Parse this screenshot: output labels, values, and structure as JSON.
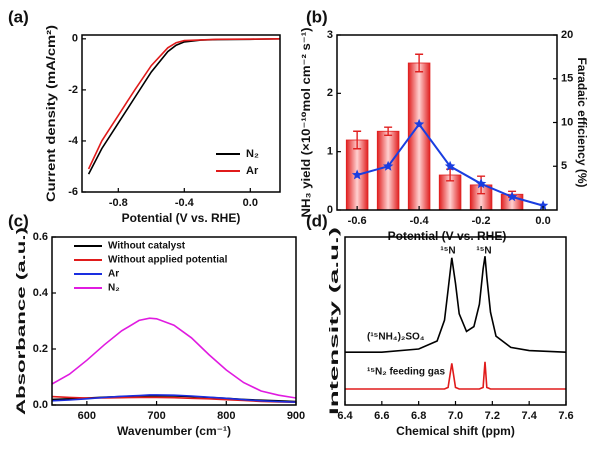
{
  "chart_data": [
    {
      "type": "line",
      "label": "(a)",
      "xlabel": "Potential (V vs. RHE)",
      "ylabel": "Current density (mA/cm²)",
      "xlim": [
        -1.02,
        0.18
      ],
      "xticks": [
        -0.8,
        -0.4,
        {
          "value": 0,
          "label": "0.0"
        }
      ],
      "ylim": [
        -6,
        0.15
      ],
      "yticks": [
        -6,
        -4,
        -2,
        0
      ],
      "legend": "lower right",
      "x": [
        -0.98,
        -0.9,
        -0.8,
        -0.7,
        -0.6,
        -0.5,
        -0.45,
        -0.4,
        -0.3,
        -0.2,
        0,
        0.18
      ],
      "series": [
        {
          "name": "N₂",
          "color": "#000000",
          "values": [
            -5.3,
            -4.3,
            -3.3,
            -2.3,
            -1.3,
            -0.5,
            -0.25,
            -0.12,
            -0.05,
            -0.03,
            -0.02,
            0
          ]
        },
        {
          "name": "Ar",
          "color": "#e01b1b",
          "values": [
            -5.1,
            -4.0,
            -3.0,
            -2.0,
            -1.05,
            -0.35,
            -0.15,
            -0.07,
            -0.04,
            -0.02,
            -0.01,
            0
          ]
        }
      ]
    },
    {
      "type": "bar",
      "label": "(b)",
      "xlabel": "Potential (V vs. RHE)",
      "ylabel": "NH₃ yield (×10⁻¹⁰mol cm⁻² s⁻¹)",
      "y2label": "Faradaic efficiency (%)",
      "xlim": [
        -0.665,
        0.045
      ],
      "xticks": [
        -0.6,
        -0.4,
        -0.2,
        {
          "value": 0,
          "label": "0.0"
        }
      ],
      "ylim": [
        0,
        3
      ],
      "yticks": [
        0,
        1,
        2,
        3
      ],
      "y2lim": [
        0,
        20
      ],
      "y2ticks": [
        5,
        10,
        15,
        20
      ],
      "x": [
        -0.6,
        -0.5,
        -0.4,
        -0.3,
        -0.2,
        -0.1,
        0
      ],
      "series": [
        {
          "color": "#e02020",
          "values": [
            1.2,
            1.35,
            2.52,
            0.6,
            0.43,
            0.27,
            null
          ],
          "errors": [
            0.15,
            0.07,
            0.15,
            0.1,
            0.15,
            0.05,
            null
          ]
        },
        {
          "color": "#1a3ee0",
          "axis": "y2",
          "values": [
            4,
            5,
            9.8,
            5,
            3,
            1.5,
            0.5
          ]
        }
      ]
    },
    {
      "type": "line",
      "label": "(c)",
      "xlabel": "Wavenumber (cm⁻¹)",
      "ylabel": "Absorbance (a.u.)",
      "xlim": [
        550,
        900
      ],
      "xticks": [
        600,
        700,
        800,
        900
      ],
      "ylim": [
        0,
        0.6
      ],
      "yticks": [
        {
          "value": 0,
          "label": "0.0"
        },
        0.2,
        0.4,
        0.6
      ],
      "legend": "upper left",
      "x": [
        550,
        575,
        600,
        625,
        650,
        675,
        690,
        700,
        725,
        750,
        775,
        800,
        825,
        850,
        875,
        900
      ],
      "series": [
        {
          "name": "Without catalyst",
          "color": "#000000",
          "values": [
            0.02,
            0.022,
            0.025,
            0.028,
            0.03,
            0.032,
            0.033,
            0.033,
            0.032,
            0.03,
            0.027,
            0.024,
            0.02,
            0.017,
            0.015,
            0.012
          ]
        },
        {
          "name": "Without applied potential",
          "color": "#e01b1b",
          "values": [
            0.03,
            0.027,
            0.025,
            0.025,
            0.026,
            0.027,
            0.027,
            0.027,
            0.026,
            0.024,
            0.022,
            0.019,
            0.016,
            0.013,
            0.011,
            0.01
          ]
        },
        {
          "name": "Ar",
          "color": "#1a2ee0",
          "values": [
            0.015,
            0.018,
            0.022,
            0.027,
            0.031,
            0.034,
            0.036,
            0.036,
            0.035,
            0.032,
            0.028,
            0.024,
            0.019,
            0.015,
            0.012,
            0.01
          ]
        },
        {
          "name": "N₂",
          "color": "#e01be0",
          "values": [
            0.075,
            0.11,
            0.16,
            0.215,
            0.265,
            0.302,
            0.31,
            0.308,
            0.285,
            0.24,
            0.18,
            0.125,
            0.08,
            0.05,
            0.035,
            0.025
          ]
        }
      ]
    },
    {
      "type": "line",
      "label": "(d)",
      "xlabel": "Chemical shift (ppm)",
      "ylabel": "Intensity (a.u.)",
      "xlim": [
        6.4,
        7.6
      ],
      "xticks": [
        6.4,
        6.6,
        6.8,
        {
          "value": 7,
          "label": "7.0"
        },
        7.2,
        7.4,
        7.6
      ],
      "ylim": [
        0,
        1.05
      ],
      "legend": "inline",
      "annotations": [
        "¹⁵N",
        "¹⁵N"
      ],
      "x": [
        6.4,
        6.6,
        6.8,
        6.9,
        6.94,
        6.96,
        6.98,
        7.0,
        7.02,
        7.06,
        7.1,
        7.13,
        7.15,
        7.16,
        7.17,
        7.19,
        7.22,
        7.3,
        7.4,
        7.6
      ],
      "series": [
        {
          "name": "(¹⁵NH₄)₂SO₄",
          "color": "#000000",
          "values": [
            0.33,
            0.33,
            0.35,
            0.4,
            0.53,
            0.72,
            0.92,
            0.76,
            0.57,
            0.46,
            0.49,
            0.63,
            0.85,
            0.93,
            0.8,
            0.58,
            0.43,
            0.36,
            0.34,
            0.33
          ]
        },
        {
          "name": "¹⁵N₂ feeding gas",
          "color": "#e01b1b",
          "values": [
            0.1,
            0.1,
            0.1,
            0.1,
            0.1,
            0.11,
            0.26,
            0.11,
            0.1,
            0.1,
            0.1,
            0.1,
            0.11,
            0.27,
            0.11,
            0.1,
            0.1,
            0.1,
            0.1,
            0.1
          ]
        }
      ]
    }
  ]
}
